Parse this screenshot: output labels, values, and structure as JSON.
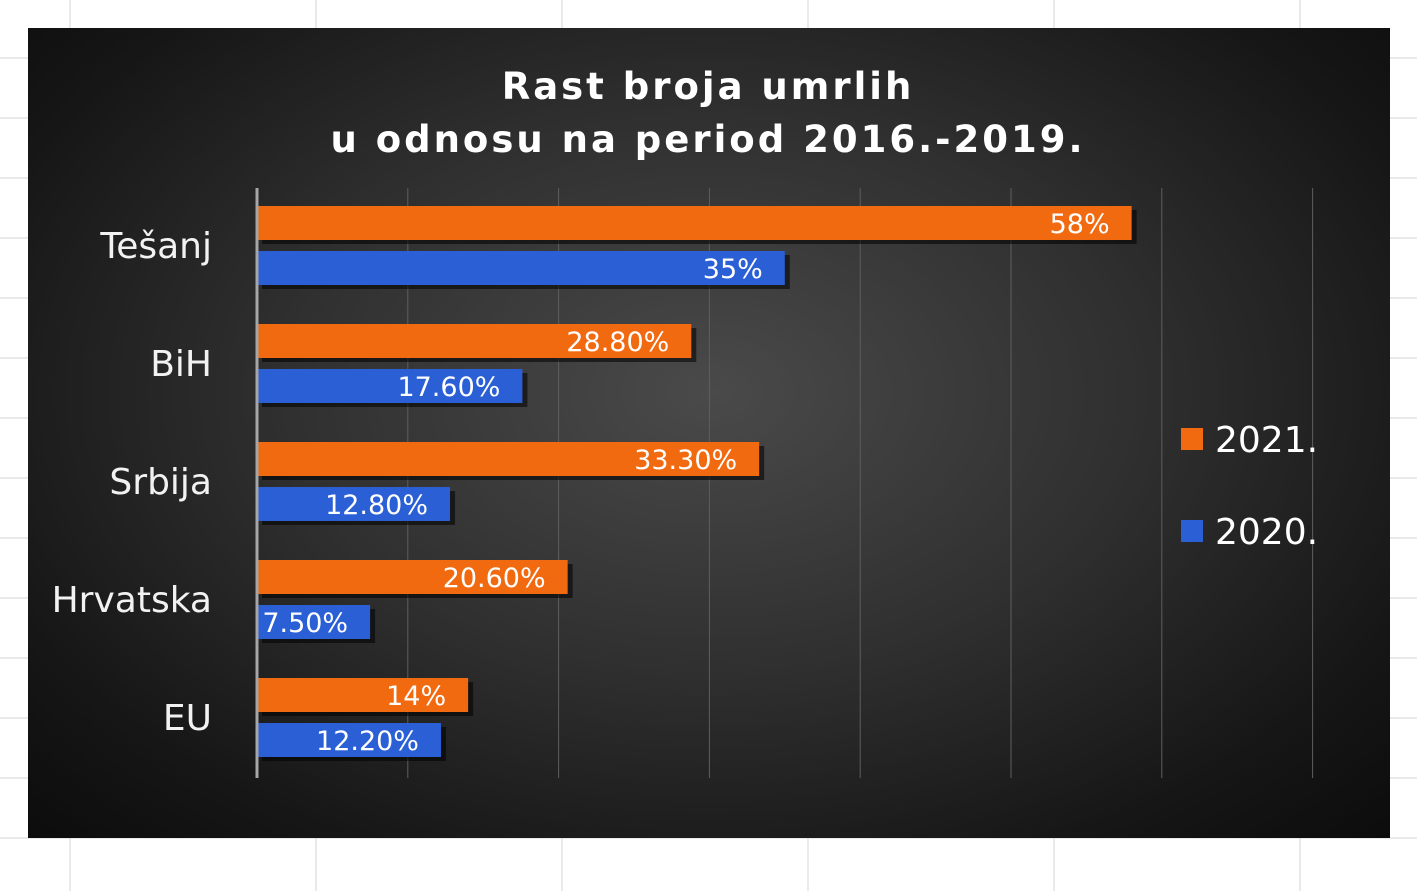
{
  "chart_data": {
    "type": "bar",
    "orientation": "horizontal",
    "title": [
      "Rast broja umrlih",
      "u odnosu na period 2016.-2019."
    ],
    "categories": [
      "Tešanj",
      "BiH",
      "Srbija",
      "Hrvatska",
      "EU"
    ],
    "series": [
      {
        "name": "2021.",
        "color": "#f26a10",
        "values": [
          58,
          28.8,
          33.3,
          20.6,
          14
        ],
        "labels": [
          "58%",
          "28.80%",
          "33.30%",
          "20.60%",
          "14%"
        ]
      },
      {
        "name": "2020.",
        "color": "#2a5fd6",
        "values": [
          35,
          17.6,
          12.8,
          7.5,
          12.2
        ],
        "labels": [
          "35%",
          "17.60%",
          "12.80%",
          "7.50%",
          "12.20%"
        ]
      }
    ],
    "xlim": [
      0,
      70
    ],
    "x_gridline_step": 10,
    "grid": true,
    "legend": "right",
    "background": "dark-gradient"
  }
}
